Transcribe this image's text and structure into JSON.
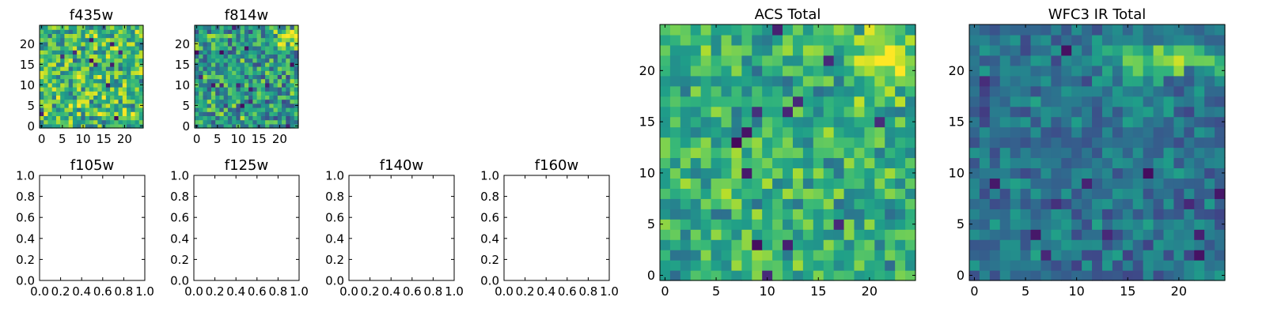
{
  "chart_data": [
    {
      "type": "heatmap",
      "title": "f435w",
      "grid_size": 25,
      "xticks": [
        "0",
        "5",
        "10",
        "15",
        "20"
      ],
      "yticks": [
        "0",
        "5",
        "10",
        "15",
        "20"
      ],
      "xlim": [
        -0.5,
        24.5
      ],
      "ylim": [
        -0.5,
        24.5
      ],
      "colormap": "viridis",
      "value_range": [
        0,
        1
      ],
      "seed": 11,
      "base": 0.68,
      "spread": 0.55,
      "rows": []
    },
    {
      "type": "heatmap",
      "title": "f814w",
      "grid_size": 25,
      "xticks": [
        "0",
        "5",
        "10",
        "15",
        "20"
      ],
      "yticks": [
        "0",
        "5",
        "10",
        "15",
        "20"
      ],
      "xlim": [
        -0.5,
        24.5
      ],
      "ylim": [
        -0.5,
        24.5
      ],
      "colormap": "viridis",
      "value_range": [
        0,
        1
      ],
      "seed": 23,
      "base": 0.55,
      "spread": 0.55,
      "hotspot": {
        "x": 22,
        "y": 21,
        "amp": 0.45,
        "rx": 3,
        "ry": 2
      },
      "rows": []
    },
    {
      "type": "empty",
      "title": "f105w",
      "xticks": [
        "0.0",
        "0.2",
        "0.4",
        "0.6",
        "0.8",
        "1.0"
      ],
      "yticks": [
        "0.0",
        "0.2",
        "0.4",
        "0.6",
        "0.8",
        "1.0"
      ],
      "xlim": [
        0,
        1
      ],
      "ylim": [
        0,
        1
      ]
    },
    {
      "type": "empty",
      "title": "f125w",
      "xticks": [
        "0.0",
        "0.2",
        "0.4",
        "0.6",
        "0.8",
        "1.0"
      ],
      "yticks": [
        "0.0",
        "0.2",
        "0.4",
        "0.6",
        "0.8",
        "1.0"
      ],
      "xlim": [
        0,
        1
      ],
      "ylim": [
        0,
        1
      ]
    },
    {
      "type": "empty",
      "title": "f140w",
      "xticks": [
        "0.0",
        "0.2",
        "0.4",
        "0.6",
        "0.8",
        "1.0"
      ],
      "yticks": [
        "0.0",
        "0.2",
        "0.4",
        "0.6",
        "0.8",
        "1.0"
      ],
      "xlim": [
        0,
        1
      ],
      "ylim": [
        0,
        1
      ]
    },
    {
      "type": "empty",
      "title": "f160w",
      "xticks": [
        "0.0",
        "0.2",
        "0.4",
        "0.6",
        "0.8",
        "1.0"
      ],
      "yticks": [
        "0.0",
        "0.2",
        "0.4",
        "0.6",
        "0.8",
        "1.0"
      ],
      "xlim": [
        0,
        1
      ],
      "ylim": [
        0,
        1
      ]
    },
    {
      "type": "heatmap",
      "title": "ACS Total",
      "grid_size": 25,
      "xticks": [
        "0",
        "5",
        "10",
        "15",
        "20"
      ],
      "yticks": [
        "0",
        "5",
        "10",
        "15",
        "20"
      ],
      "xlim": [
        -0.5,
        24.5
      ],
      "ylim": [
        -0.5,
        24.5
      ],
      "colormap": "viridis",
      "value_range": [
        0,
        1
      ],
      "seed": 37,
      "base": 0.62,
      "spread": 0.42,
      "hotspot": {
        "x": 22,
        "y": 21,
        "amp": 0.4,
        "rx": 3,
        "ry": 3
      },
      "rows": []
    },
    {
      "type": "heatmap",
      "title": "WFC3 IR Total",
      "grid_size": 25,
      "xticks": [
        "0",
        "5",
        "10",
        "15",
        "20"
      ],
      "yticks": [
        "0",
        "5",
        "10",
        "15",
        "20"
      ],
      "xlim": [
        -0.5,
        24.5
      ],
      "ylim": [
        -0.5,
        24.5
      ],
      "colormap": "viridis",
      "value_range": [
        0,
        1
      ],
      "seed": 53,
      "base": 0.38,
      "spread": 0.32,
      "hotspot": {
        "x": 19,
        "y": 21,
        "amp": 0.55,
        "rx": 5,
        "ry": 1.5
      },
      "rows": []
    }
  ]
}
